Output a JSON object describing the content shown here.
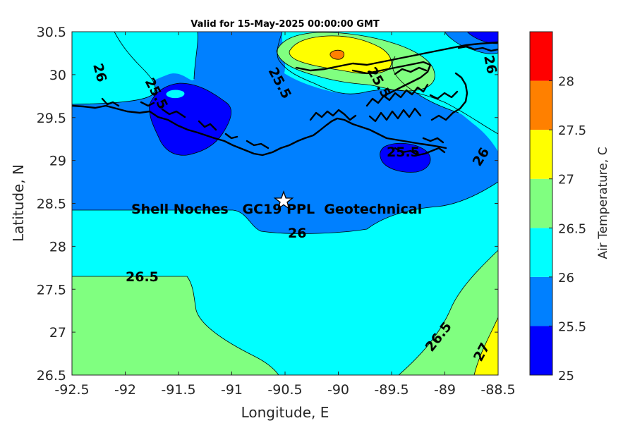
{
  "title": "Valid for 15-May-2025 00:00:00 GMT",
  "x_axis": {
    "label": "Longitude, E",
    "range": [
      -92.5,
      -88.5
    ],
    "ticks": [
      "-92.5",
      "-92",
      "-91.5",
      "-91",
      "-90.5",
      "-90",
      "-89.5",
      "-89",
      "-88.5"
    ]
  },
  "y_axis": {
    "label": "Latitude, N",
    "range": [
      26.5,
      30.5
    ],
    "ticks": [
      "30.5",
      "30",
      "29.5",
      "29",
      "28.5",
      "28",
      "27.5",
      "27",
      "26.5"
    ]
  },
  "colorbar": {
    "label": "Air Temperature, C",
    "ticks": [
      "28",
      "27.5",
      "27",
      "26.5",
      "26",
      "25.5",
      "25"
    ],
    "bands": [
      {
        "from": 25.0,
        "to": 25.5,
        "color": "#0000ff"
      },
      {
        "from": 25.5,
        "to": 26.0,
        "color": "#0080ff"
      },
      {
        "from": 26.0,
        "to": 26.5,
        "color": "#00ffff"
      },
      {
        "from": 26.5,
        "to": 27.0,
        "color": "#80ff80"
      },
      {
        "from": 27.0,
        "to": 27.5,
        "color": "#ffff00"
      },
      {
        "from": 27.5,
        "to": 28.0,
        "color": "#ff8000"
      },
      {
        "from": 28.0,
        "to": 28.5,
        "color": "#ff0000"
      }
    ]
  },
  "site": {
    "label": "Shell Noches   GC19 PPL  Geotechnical",
    "lon": -90.53,
    "lat": 28.55,
    "marker": "star-icon"
  },
  "contour_labels": {
    "l1": "26",
    "l2": "25.5",
    "l3": "25.5",
    "l4": "25.5",
    "l5": "26",
    "l6": "26",
    "l7": "26.5",
    "l8": "26.5",
    "l9": "27",
    "l10": "26",
    "l11": "25.5"
  }
}
